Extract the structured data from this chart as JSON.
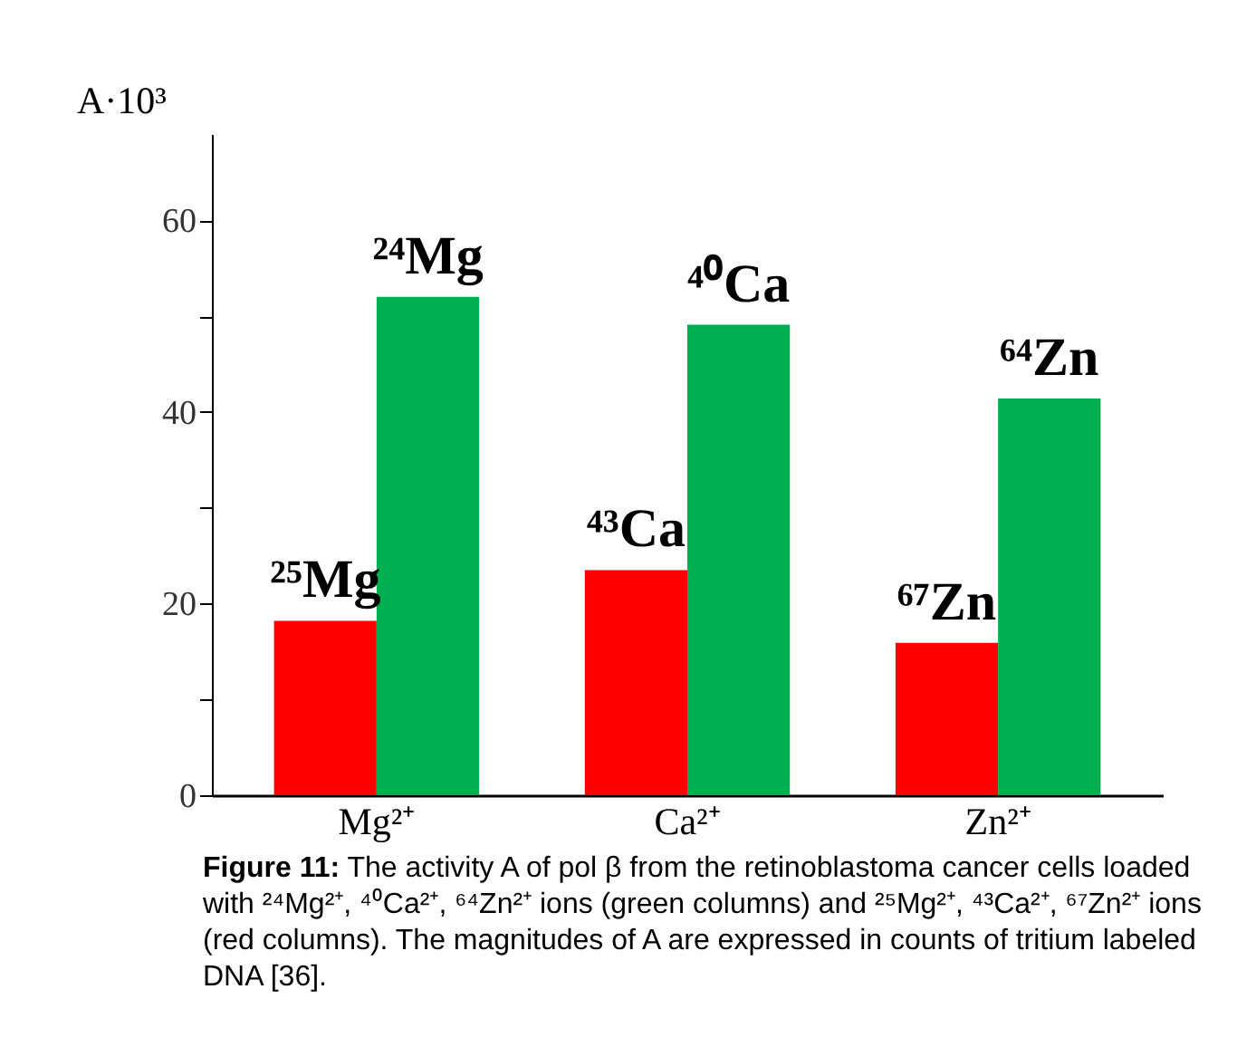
{
  "chart_data": {
    "type": "bar",
    "ylabel": "A·10³",
    "categories": [
      "Mg²⁺",
      "Ca²⁺",
      "Zn²⁺"
    ],
    "series": [
      {
        "color": "#ff0000",
        "values": [
          18.2,
          23.5,
          15.9
        ]
      },
      {
        "color": "#00b050",
        "values": [
          52.0,
          49.1,
          41.4
        ]
      }
    ],
    "ylim": [
      0,
      69
    ],
    "yticks": [
      0,
      {
        "value": 10,
        "label": null
      },
      20,
      {
        "value": 30,
        "label": null
      },
      40,
      {
        "value": 50,
        "label": null
      },
      60
    ],
    "grid": false,
    "legend": false,
    "annotations": [
      {
        "text": "²⁵Mg",
        "x": "Mg²⁺",
        "y": 18.2
      },
      {
        "text": "²⁴Mg",
        "x": "Mg²⁺",
        "y": 52.0
      },
      {
        "text": "⁴³Ca",
        "x": "Ca²⁺",
        "y": 23.5
      },
      {
        "text": "⁴⁰Ca",
        "x": "Ca²⁺",
        "y": 49.1
      },
      {
        "text": "⁶⁷Zn",
        "x": "Zn²⁺",
        "y": 15.9
      },
      {
        "text": "⁶⁴Zn",
        "x": "Zn²⁺",
        "y": 41.4
      },
      "Figure 11: The activity A of pol β from the retinoblastoma cancer cells loaded with ²⁴Mg²⁺, ⁴⁰Ca²⁺, ⁶⁴Zn²⁺ ions (green columns) and ²⁵Mg²⁺, ⁴³Ca²⁺, ⁶⁷Zn²⁺ ions (red columns). The magnitudes of A are expressed in counts of tritium labeled DNA [36]."
    ]
  }
}
